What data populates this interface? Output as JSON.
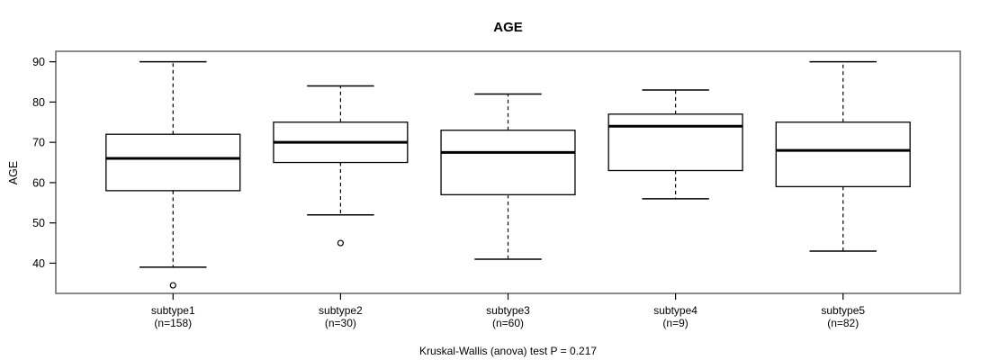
{
  "page": {
    "background": "#ffffff"
  },
  "chart_data": {
    "type": "boxplot",
    "title": "AGE",
    "ylabel": "AGE",
    "xlabel": "",
    "footer": "Kruskal-Wallis (anova) test P = 0.217",
    "ylim": [
      32.5,
      92.6
    ],
    "yticks": [
      40,
      50,
      60,
      70,
      80,
      90
    ],
    "grid": false,
    "legend": "none",
    "colors": {
      "box_fill": "#ffffff",
      "line": "#000000",
      "frame": "#6e6e6e",
      "background": "#ffffff"
    },
    "groups": [
      {
        "label": "subtype1",
        "n_label": "(n=158)",
        "whisker_low": 39,
        "q1": 58,
        "median": 66,
        "q3": 72,
        "whisker_high": 90,
        "outliers": [
          34.5
        ]
      },
      {
        "label": "subtype2",
        "n_label": "(n=30)",
        "whisker_low": 52,
        "q1": 65,
        "median": 70,
        "q3": 75,
        "whisker_high": 84,
        "outliers": [
          45
        ]
      },
      {
        "label": "subtype3",
        "n_label": "(n=60)",
        "whisker_low": 41,
        "q1": 57,
        "median": 67.5,
        "q3": 73,
        "whisker_high": 82,
        "outliers": []
      },
      {
        "label": "subtype4",
        "n_label": "(n=9)",
        "whisker_low": 56,
        "q1": 63,
        "median": 74,
        "q3": 77,
        "whisker_high": 83,
        "outliers": []
      },
      {
        "label": "subtype5",
        "n_label": "(n=82)",
        "whisker_low": 43,
        "q1": 59,
        "median": 68,
        "q3": 75,
        "whisker_high": 90,
        "outliers": []
      }
    ]
  }
}
